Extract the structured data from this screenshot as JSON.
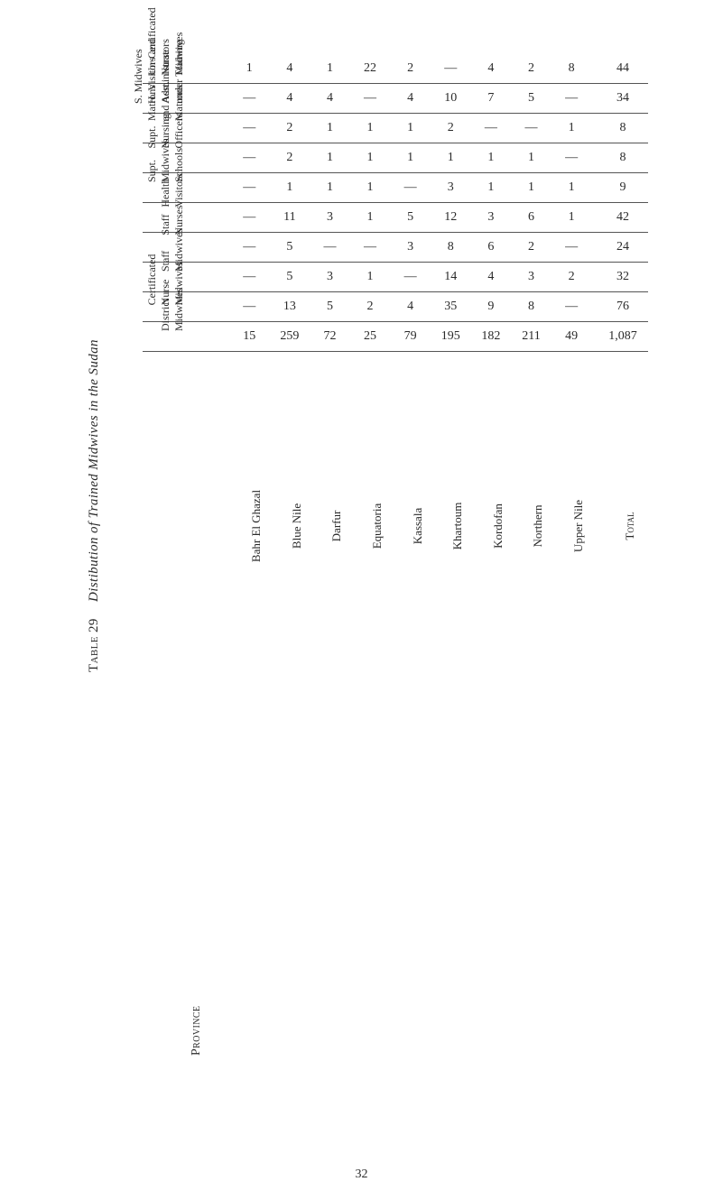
{
  "table_number": "Table 29",
  "caption_title": "Distibution of Trained Midwives in the Sudan",
  "page_number": "32",
  "province_heading": "Province",
  "provinces_heading_ellipsis": "",
  "total_label": "Total",
  "provinces": [
    "Bahr El Ghazal",
    "Blue Nile",
    "Darfur",
    "Equatoria",
    "Kassala",
    "Khartoum",
    "Kordofan",
    "Northern",
    "Upper Nile"
  ],
  "columns": [
    {
      "label": "District\nMidwives",
      "values": [
        "15",
        "259",
        "72",
        "25",
        "79",
        "195",
        "182",
        "211",
        "49"
      ],
      "total": "1,087"
    },
    {
      "label": "Certificated\nNurse\nMidwives",
      "values": [
        "|",
        "13",
        "5",
        "2",
        "4",
        "35",
        "9",
        "8",
        "|"
      ],
      "total": "76"
    },
    {
      "label": "Staff\nMidwives",
      "values": [
        "|",
        "5",
        "3",
        "1",
        "|",
        "14",
        "4",
        "3",
        "2"
      ],
      "total": "32"
    },
    {
      "label": "Staff\nNurses",
      "values": [
        "|",
        "5",
        "|",
        "|",
        "3",
        "8",
        "6",
        "2",
        "|"
      ],
      "total": "24"
    },
    {
      "label": "Health\nVisitors",
      "values": [
        "|",
        "11",
        "3",
        "1",
        "5",
        "12",
        "3",
        "6",
        "1"
      ],
      "total": "42"
    },
    {
      "label": "Supt.\nMidwives\nSchools",
      "values": [
        "|",
        "1",
        "1",
        "1",
        "|",
        "3",
        "1",
        "1",
        "1"
      ],
      "total": "9"
    },
    {
      "label": "Supt.\nNursing\nOfficers",
      "values": [
        "|",
        "2",
        "1",
        "1",
        "1",
        "1",
        "1",
        "1",
        "|"
      ],
      "total": "8"
    },
    {
      "label": "Matrons\nand Asst.\nMatrons",
      "values": [
        "|",
        "2",
        "1",
        "1",
        "1",
        "2",
        "|",
        "|",
        "1"
      ],
      "total": "8"
    },
    {
      "label": "S. Midwives\nH. Visitors and\nAdministrators\nunder Training",
      "values": [
        "|",
        "4",
        "4",
        "|",
        "4",
        "10",
        "7",
        "5",
        "|"
      ],
      "total": "34"
    },
    {
      "label": "Un-Certificated\nNurse\nMidwives",
      "values": [
        "1",
        "4",
        "1",
        "22",
        "2",
        "|",
        "4",
        "2",
        "8"
      ],
      "total": "44"
    }
  ],
  "dash_glyph": "—",
  "style": {
    "background": "#ffffff",
    "text": "#2a2a2a",
    "rule": "#555555",
    "font_family": "Times New Roman",
    "caption_fontsize_pt": 15,
    "body_fontsize_pt": 14,
    "colhead_fontsize_pt": 12,
    "prov_fontsize_pt": 13
  }
}
